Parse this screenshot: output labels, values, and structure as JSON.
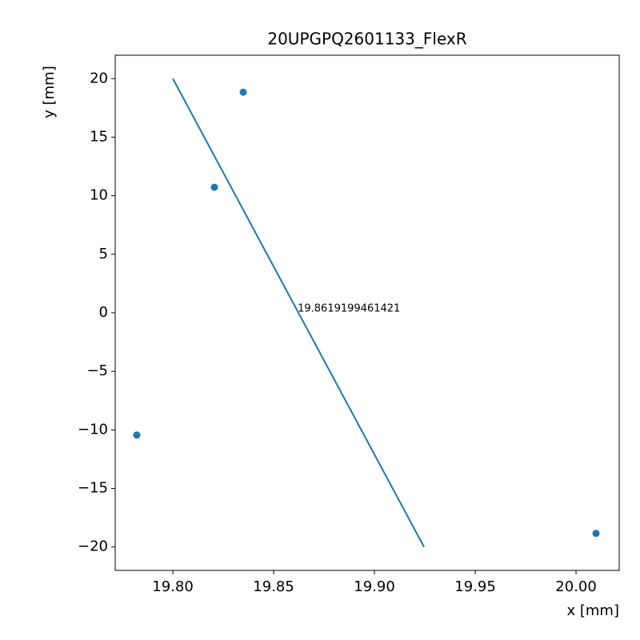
{
  "chart_data": {
    "type": "scatter",
    "title": "20UPGPQ2601133_FlexR",
    "x_label": "x [mm]",
    "y_label": "y [mm]",
    "color": "#1f77b4",
    "x": [
      19.7821,
      19.8206,
      19.8349,
      20.0099
    ],
    "values": [
      -10.44,
      10.72,
      18.84,
      -18.84
    ],
    "line": {
      "x": [
        19.8,
        19.9246
      ],
      "values": [
        20,
        -20
      ]
    },
    "annotations": [
      {
        "text": "19.8619199461421",
        "x": 19.8619199461421,
        "y": 0
      }
    ],
    "xlim": [
      19.7714,
      20.0214
    ],
    "ylim": [
      -22,
      22
    ],
    "xticks": [
      {
        "value": 19.8,
        "label": "19.80"
      },
      {
        "value": 19.85,
        "label": "19.85"
      },
      {
        "value": 19.9,
        "label": "19.90"
      },
      {
        "value": 19.95,
        "label": "19.95"
      },
      {
        "value": 20.0,
        "label": "20.00"
      }
    ],
    "yticks": [
      {
        "value": -20,
        "label": "−20"
      },
      {
        "value": -15,
        "label": "−15"
      },
      {
        "value": -10,
        "label": "−10"
      },
      {
        "value": -5,
        "label": "−5"
      },
      0,
      5,
      10,
      15,
      20
    ]
  }
}
